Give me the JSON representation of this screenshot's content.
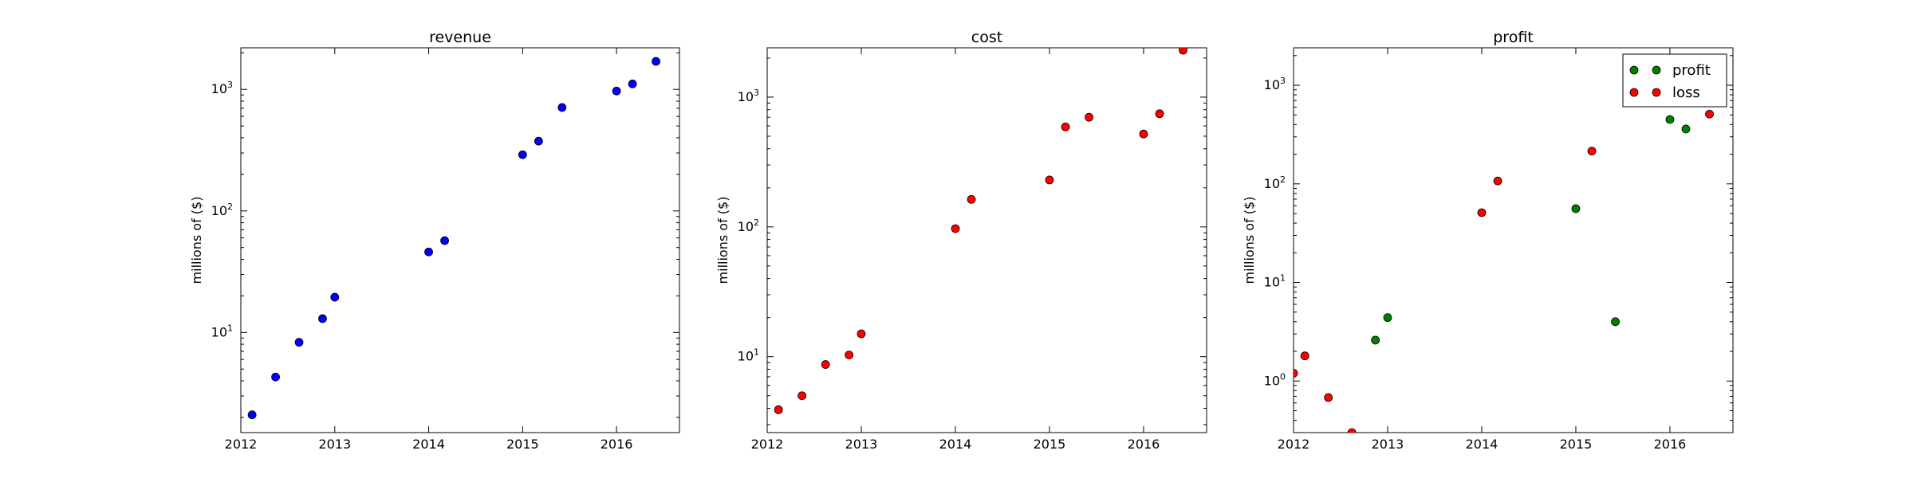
{
  "chart_data": [
    {
      "type": "scatter",
      "title": "revenue",
      "ylabel": "millions of ($)",
      "xlabel": "",
      "yscale": "log",
      "xlim": [
        2012,
        2016.67
      ],
      "ylim": [
        1.5,
        2200
      ],
      "xticks": [
        "2012",
        "2013",
        "2014",
        "2015",
        "2016"
      ],
      "ytick_labels": [
        "10^1",
        "10^2",
        "10^3"
      ],
      "legend": null,
      "series": [
        {
          "color": "#0000ff",
          "points": [
            {
              "x": 2012.12,
              "y": 2.1
            },
            {
              "x": 2012.37,
              "y": 4.3
            },
            {
              "x": 2012.62,
              "y": 8.3
            },
            {
              "x": 2012.87,
              "y": 13.0
            },
            {
              "x": 2013.0,
              "y": 19.5
            },
            {
              "x": 2014.0,
              "y": 46
            },
            {
              "x": 2014.17,
              "y": 57
            },
            {
              "x": 2015.0,
              "y": 290
            },
            {
              "x": 2015.17,
              "y": 375
            },
            {
              "x": 2015.42,
              "y": 710
            },
            {
              "x": 2016.0,
              "y": 970
            },
            {
              "x": 2016.17,
              "y": 1110
            },
            {
              "x": 2016.42,
              "y": 1700
            }
          ]
        }
      ]
    },
    {
      "type": "scatter",
      "title": "cost",
      "ylabel": "millions of ($)",
      "xlabel": "",
      "yscale": "log",
      "xlim": [
        2012,
        2016.67
      ],
      "ylim": [
        2.6,
        2400
      ],
      "xticks": [
        "2012",
        "2013",
        "2014",
        "2015",
        "2016"
      ],
      "ytick_labels": [
        "10^1",
        "10^2",
        "10^3"
      ],
      "legend": null,
      "series": [
        {
          "color": "#ff0000",
          "points": [
            {
              "x": 2012.12,
              "y": 3.9
            },
            {
              "x": 2012.37,
              "y": 5.0
            },
            {
              "x": 2012.62,
              "y": 8.7
            },
            {
              "x": 2012.87,
              "y": 10.3
            },
            {
              "x": 2013.0,
              "y": 15.0
            },
            {
              "x": 2014.0,
              "y": 97
            },
            {
              "x": 2014.17,
              "y": 163
            },
            {
              "x": 2015.0,
              "y": 230
            },
            {
              "x": 2015.17,
              "y": 590
            },
            {
              "x": 2015.42,
              "y": 700
            },
            {
              "x": 2016.0,
              "y": 520
            },
            {
              "x": 2016.17,
              "y": 745
            },
            {
              "x": 2016.42,
              "y": 2300
            }
          ]
        }
      ]
    },
    {
      "type": "scatter",
      "title": "profit",
      "ylabel": "millions of ($)",
      "xlabel": "",
      "yscale": "log",
      "xlim": [
        2012,
        2016.67
      ],
      "ylim": [
        0.3,
        2400
      ],
      "xticks": [
        "2012",
        "2013",
        "2014",
        "2015",
        "2016"
      ],
      "ytick_labels": [
        "10^0",
        "10^1",
        "10^2",
        "10^3"
      ],
      "legend": {
        "placement": "top-right",
        "entries": [
          "profit",
          "loss"
        ]
      },
      "series": [
        {
          "name": "profit",
          "color": "#008000",
          "points": [
            {
              "x": 2012.87,
              "y": 2.6
            },
            {
              "x": 2013.0,
              "y": 4.4
            },
            {
              "x": 2015.0,
              "y": 56
            },
            {
              "x": 2015.42,
              "y": 4.0
            },
            {
              "x": 2016.0,
              "y": 450
            },
            {
              "x": 2016.17,
              "y": 360
            }
          ]
        },
        {
          "name": "loss",
          "color": "#ff0000",
          "points": [
            {
              "x": 2012.0,
              "y": 1.2
            },
            {
              "x": 2012.12,
              "y": 1.8
            },
            {
              "x": 2012.37,
              "y": 0.68
            },
            {
              "x": 2012.62,
              "y": 0.3
            },
            {
              "x": 2014.0,
              "y": 51
            },
            {
              "x": 2014.17,
              "y": 107
            },
            {
              "x": 2015.17,
              "y": 215
            },
            {
              "x": 2016.42,
              "y": 510
            }
          ]
        }
      ]
    }
  ]
}
